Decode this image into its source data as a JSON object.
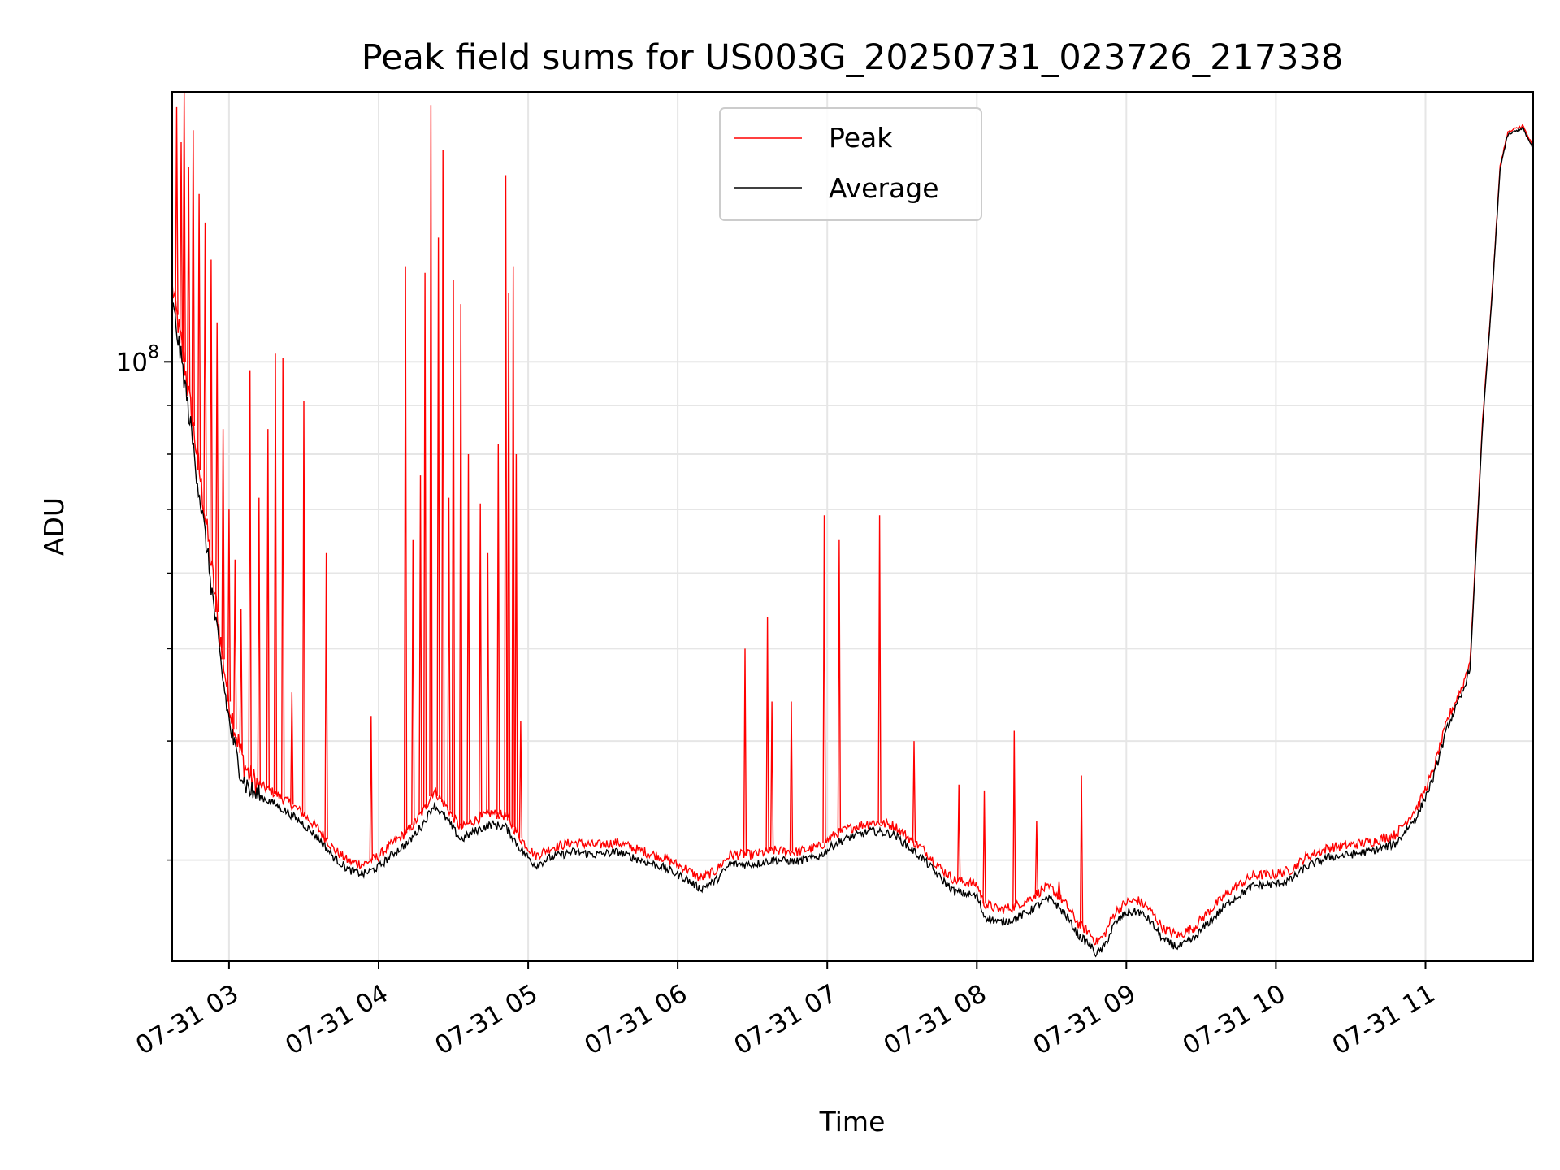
{
  "chart_data": {
    "type": "line",
    "title": "Peak field sums for US003G_20250731_023726_217338",
    "xlabel": "Time",
    "ylabel": "ADU",
    "x_axis": {
      "kind": "time",
      "range_hours": [
        2.62,
        11.72
      ],
      "ticks": [
        {
          "hour": 3,
          "label": "07-31 03"
        },
        {
          "hour": 4,
          "label": "07-31 04"
        },
        {
          "hour": 5,
          "label": "07-31 05"
        },
        {
          "hour": 6,
          "label": "07-31 06"
        },
        {
          "hour": 7,
          "label": "07-31 07"
        },
        {
          "hour": 8,
          "label": "07-31 08"
        },
        {
          "hour": 9,
          "label": "07-31 09"
        },
        {
          "hour": 10,
          "label": "07-31 10"
        },
        {
          "hour": 11,
          "label": "07-31 11"
        }
      ]
    },
    "y_axis": {
      "scale": "log",
      "range": [
        23500000,
        192000000
      ],
      "major_ticks": [
        {
          "value": 100000000,
          "label": "10",
          "exponent": "8"
        }
      ],
      "minor_ticks": [
        30000000,
        40000000,
        50000000,
        60000000,
        70000000,
        80000000,
        90000000
      ]
    },
    "grid": true,
    "legend": {
      "placement": "upper-center",
      "entries": [
        {
          "name": "Peak",
          "color": "#ff0000"
        },
        {
          "name": "Average",
          "color": "#000000"
        }
      ]
    },
    "series": [
      {
        "name": "Average",
        "color": "#000000",
        "points": [
          [
            2.62,
            115000000
          ],
          [
            2.65,
            108000000
          ],
          [
            2.7,
            96000000
          ],
          [
            2.75,
            84000000
          ],
          [
            2.8,
            73000000
          ],
          [
            2.85,
            64000000
          ],
          [
            2.9,
            55000000
          ],
          [
            2.95,
            47500000
          ],
          [
            3.0,
            42000000
          ],
          [
            3.05,
            38500000
          ],
          [
            3.1,
            36300000
          ],
          [
            3.15,
            35400000
          ],
          [
            3.2,
            35000000
          ],
          [
            3.3,
            34400000
          ],
          [
            3.4,
            33600000
          ],
          [
            3.5,
            32700000
          ],
          [
            3.6,
            31600000
          ],
          [
            3.7,
            30200000
          ],
          [
            3.8,
            29300000
          ],
          [
            3.9,
            29000000
          ],
          [
            4.0,
            29500000
          ],
          [
            4.1,
            30500000
          ],
          [
            4.2,
            31300000
          ],
          [
            4.3,
            32800000
          ],
          [
            4.37,
            34300000
          ],
          [
            4.45,
            33200000
          ],
          [
            4.55,
            31500000
          ],
          [
            4.65,
            32200000
          ],
          [
            4.75,
            32700000
          ],
          [
            4.85,
            32500000
          ],
          [
            4.95,
            30800000
          ],
          [
            5.05,
            29600000
          ],
          [
            5.15,
            30200000
          ],
          [
            5.3,
            30600000
          ],
          [
            5.45,
            30400000
          ],
          [
            5.6,
            30600000
          ],
          [
            5.75,
            30000000
          ],
          [
            5.9,
            29500000
          ],
          [
            6.05,
            28700000
          ],
          [
            6.15,
            28000000
          ],
          [
            6.25,
            28500000
          ],
          [
            6.35,
            29700000
          ],
          [
            6.5,
            29700000
          ],
          [
            6.65,
            30000000
          ],
          [
            6.8,
            29900000
          ],
          [
            6.95,
            30300000
          ],
          [
            7.05,
            31200000
          ],
          [
            7.15,
            31700000
          ],
          [
            7.3,
            32200000
          ],
          [
            7.45,
            31900000
          ],
          [
            7.55,
            30900000
          ],
          [
            7.65,
            30000000
          ],
          [
            7.75,
            28800000
          ],
          [
            7.85,
            27800000
          ],
          [
            8.0,
            27500000
          ],
          [
            8.05,
            26200000
          ],
          [
            8.15,
            25800000
          ],
          [
            8.25,
            26000000
          ],
          [
            8.35,
            26500000
          ],
          [
            8.45,
            27200000
          ],
          [
            8.5,
            27300000
          ],
          [
            8.6,
            26200000
          ],
          [
            8.68,
            25000000
          ],
          [
            8.75,
            24500000
          ],
          [
            8.8,
            23900000
          ],
          [
            8.85,
            24300000
          ],
          [
            8.92,
            25700000
          ],
          [
            9.0,
            26400000
          ],
          [
            9.08,
            26500000
          ],
          [
            9.15,
            26000000
          ],
          [
            9.25,
            24700000
          ],
          [
            9.35,
            24300000
          ],
          [
            9.45,
            24800000
          ],
          [
            9.55,
            25800000
          ],
          [
            9.7,
            27200000
          ],
          [
            9.85,
            28200000
          ],
          [
            10.0,
            28300000
          ],
          [
            10.1,
            28600000
          ],
          [
            10.2,
            29500000
          ],
          [
            10.35,
            30200000
          ],
          [
            10.5,
            30400000
          ],
          [
            10.65,
            30700000
          ],
          [
            10.8,
            31200000
          ],
          [
            10.95,
            33500000
          ],
          [
            11.05,
            36500000
          ],
          [
            11.15,
            41500000
          ],
          [
            11.25,
            45000000
          ],
          [
            11.3,
            48000000
          ],
          [
            11.38,
            85000000
          ],
          [
            11.45,
            120000000
          ],
          [
            11.5,
            160000000
          ],
          [
            11.55,
            173000000
          ],
          [
            11.65,
            176000000
          ],
          [
            11.72,
            167000000
          ]
        ]
      },
      {
        "name": "Peak",
        "color": "#ff0000",
        "points": [
          [
            2.62,
            120000000
          ],
          [
            2.65,
            112000000
          ],
          [
            2.7,
            100000000
          ],
          [
            2.75,
            88000000
          ],
          [
            2.8,
            77000000
          ],
          [
            2.85,
            67000000
          ],
          [
            2.9,
            58000000
          ],
          [
            2.95,
            50000000
          ],
          [
            3.0,
            44000000
          ],
          [
            3.05,
            40500000
          ],
          [
            3.1,
            37800000
          ],
          [
            3.15,
            36500000
          ],
          [
            3.2,
            36000000
          ],
          [
            3.3,
            35300000
          ],
          [
            3.4,
            34500000
          ],
          [
            3.5,
            33500000
          ],
          [
            3.6,
            32300000
          ],
          [
            3.7,
            30800000
          ],
          [
            3.8,
            29900000
          ],
          [
            3.9,
            29700000
          ],
          [
            4.0,
            30300000
          ],
          [
            4.1,
            31300000
          ],
          [
            4.2,
            32200000
          ],
          [
            4.3,
            33800000
          ],
          [
            4.37,
            35500000
          ],
          [
            4.45,
            34200000
          ],
          [
            4.55,
            32400000
          ],
          [
            4.65,
            33100000
          ],
          [
            4.75,
            33600000
          ],
          [
            4.85,
            33400000
          ],
          [
            4.95,
            31600000
          ],
          [
            5.05,
            30300000
          ],
          [
            5.15,
            30900000
          ],
          [
            5.3,
            31300000
          ],
          [
            5.45,
            31100000
          ],
          [
            5.6,
            31300000
          ],
          [
            5.75,
            30700000
          ],
          [
            5.9,
            30200000
          ],
          [
            6.05,
            29400000
          ],
          [
            6.15,
            28700000
          ],
          [
            6.25,
            29200000
          ],
          [
            6.35,
            30400000
          ],
          [
            6.5,
            30400000
          ],
          [
            6.65,
            30700000
          ],
          [
            6.8,
            30600000
          ],
          [
            6.95,
            31000000
          ],
          [
            7.05,
            31900000
          ],
          [
            7.15,
            32400000
          ],
          [
            7.3,
            32900000
          ],
          [
            7.45,
            32600000
          ],
          [
            7.55,
            31600000
          ],
          [
            7.65,
            30700000
          ],
          [
            7.75,
            29500000
          ],
          [
            7.85,
            28600000
          ],
          [
            8.0,
            28300000
          ],
          [
            8.05,
            27000000
          ],
          [
            8.15,
            26600000
          ],
          [
            8.25,
            26800000
          ],
          [
            8.35,
            27300000
          ],
          [
            8.45,
            28000000
          ],
          [
            8.5,
            28000000
          ],
          [
            8.6,
            26900000
          ],
          [
            8.68,
            25700000
          ],
          [
            8.75,
            25200000
          ],
          [
            8.8,
            24600000
          ],
          [
            8.85,
            25000000
          ],
          [
            8.92,
            26400000
          ],
          [
            9.0,
            27100000
          ],
          [
            9.08,
            27200000
          ],
          [
            9.15,
            26700000
          ],
          [
            9.25,
            25400000
          ],
          [
            9.35,
            25000000
          ],
          [
            9.45,
            25500000
          ],
          [
            9.55,
            26500000
          ],
          [
            9.7,
            27900000
          ],
          [
            9.85,
            28900000
          ],
          [
            10.0,
            29000000
          ],
          [
            10.1,
            29300000
          ],
          [
            10.2,
            30200000
          ],
          [
            10.35,
            30900000
          ],
          [
            10.5,
            31100000
          ],
          [
            10.65,
            31400000
          ],
          [
            10.8,
            31900000
          ],
          [
            10.95,
            34200000
          ],
          [
            11.05,
            37200000
          ],
          [
            11.15,
            42200000
          ],
          [
            11.25,
            45800000
          ],
          [
            11.3,
            48800000
          ],
          [
            11.38,
            86000000
          ],
          [
            11.45,
            121000000
          ],
          [
            11.5,
            161000000
          ],
          [
            11.55,
            174000000
          ],
          [
            11.65,
            177000000
          ],
          [
            11.72,
            168000000
          ]
        ],
        "spikes": [
          [
            2.65,
            185000000
          ],
          [
            2.68,
            170000000
          ],
          [
            2.7,
            192000000
          ],
          [
            2.73,
            160000000
          ],
          [
            2.76,
            175000000
          ],
          [
            2.8,
            150000000
          ],
          [
            2.84,
            140000000
          ],
          [
            2.88,
            128000000
          ],
          [
            2.92,
            110000000
          ],
          [
            2.96,
            85000000
          ],
          [
            3.0,
            70000000
          ],
          [
            3.04,
            62000000
          ],
          [
            3.08,
            55000000
          ],
          [
            3.14,
            98000000
          ],
          [
            3.2,
            72000000
          ],
          [
            3.26,
            85000000
          ],
          [
            3.31,
            102000000
          ],
          [
            3.36,
            101000000
          ],
          [
            3.42,
            45000000
          ],
          [
            3.5,
            91000000
          ],
          [
            3.65,
            63000000
          ],
          [
            3.95,
            42500000
          ],
          [
            4.18,
            126000000
          ],
          [
            4.23,
            65000000
          ],
          [
            4.28,
            76000000
          ],
          [
            4.31,
            124000000
          ],
          [
            4.35,
            186000000
          ],
          [
            4.4,
            135000000
          ],
          [
            4.43,
            167000000
          ],
          [
            4.47,
            72000000
          ],
          [
            4.5,
            122000000
          ],
          [
            4.55,
            115000000
          ],
          [
            4.6,
            80000000
          ],
          [
            4.68,
            71000000
          ],
          [
            4.73,
            63000000
          ],
          [
            4.8,
            82000000
          ],
          [
            4.85,
            157000000
          ],
          [
            4.87,
            118000000
          ],
          [
            4.9,
            126000000
          ],
          [
            4.92,
            80000000
          ],
          [
            4.95,
            42000000
          ],
          [
            6.45,
            50000000
          ],
          [
            6.6,
            54000000
          ],
          [
            6.63,
            44000000
          ],
          [
            6.76,
            44000000
          ],
          [
            6.98,
            69000000
          ],
          [
            7.08,
            65000000
          ],
          [
            7.35,
            69000000
          ],
          [
            7.58,
            40000000
          ],
          [
            7.88,
            36000000
          ],
          [
            8.05,
            35500000
          ],
          [
            8.25,
            41000000
          ],
          [
            8.4,
            33000000
          ],
          [
            8.55,
            28500000
          ],
          [
            8.7,
            36800000
          ]
        ]
      }
    ]
  }
}
